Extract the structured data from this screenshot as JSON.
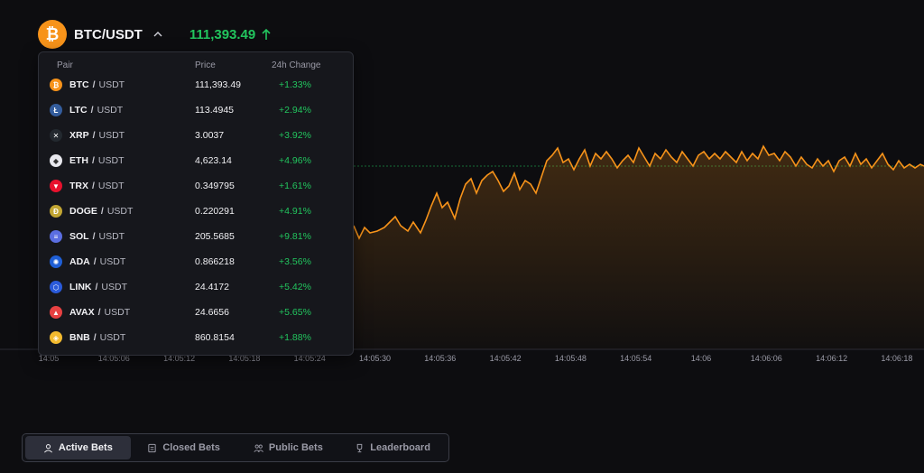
{
  "header": {
    "coin_glyph": "₿",
    "pair": "BTC/USDT",
    "price": "111,393.49",
    "price_color": "#22c55e",
    "accent": "#f7931a"
  },
  "dropdown": {
    "headers": {
      "pair": "Pair",
      "price": "Price",
      "change": "24h Change"
    },
    "rows": [
      {
        "base": "BTC",
        "quote": "USDT",
        "price": "111,393.49",
        "change": "+1.33%",
        "icon": "bitcoin-icon",
        "color": "#f7931a",
        "glyph": "₿"
      },
      {
        "base": "LTC",
        "quote": "USDT",
        "price": "113.4945",
        "change": "+2.94%",
        "icon": "litecoin-icon",
        "color": "#345d9d",
        "glyph": "Ł"
      },
      {
        "base": "XRP",
        "quote": "USDT",
        "price": "3.0037",
        "change": "+3.92%",
        "icon": "xrp-icon",
        "color": "#23292f",
        "glyph": "✕"
      },
      {
        "base": "ETH",
        "quote": "USDT",
        "price": "4,623.14",
        "change": "+4.96%",
        "icon": "ethereum-icon",
        "color": "#e8e8ee",
        "glyph": "◆"
      },
      {
        "base": "TRX",
        "quote": "USDT",
        "price": "0.349795",
        "change": "+1.61%",
        "icon": "tron-icon",
        "color": "#e8112d",
        "glyph": "▼"
      },
      {
        "base": "DOGE",
        "quote": "USDT",
        "price": "0.220291",
        "change": "+4.91%",
        "icon": "dogecoin-icon",
        "color": "#c2a633",
        "glyph": "Ð"
      },
      {
        "base": "SOL",
        "quote": "USDT",
        "price": "205.5685",
        "change": "+9.81%",
        "icon": "solana-icon",
        "color": "#5b6ee1",
        "glyph": "≡"
      },
      {
        "base": "ADA",
        "quote": "USDT",
        "price": "0.866218",
        "change": "+3.56%",
        "icon": "cardano-icon",
        "color": "#1f5fd6",
        "glyph": "✺"
      },
      {
        "base": "LINK",
        "quote": "USDT",
        "price": "24.4172",
        "change": "+5.42%",
        "icon": "chainlink-icon",
        "color": "#2a5ada",
        "glyph": "⬡"
      },
      {
        "base": "AVAX",
        "quote": "USDT",
        "price": "24.6656",
        "change": "+5.65%",
        "icon": "avalanche-icon",
        "color": "#e84142",
        "glyph": "▲"
      },
      {
        "base": "BNB",
        "quote": "USDT",
        "price": "860.8154",
        "change": "+1.88%",
        "icon": "bnb-icon",
        "color": "#f3ba2f",
        "glyph": "◈"
      }
    ]
  },
  "chart": {
    "x_ticks": [
      "14:05",
      "14:05:06",
      "14:05:12",
      "14:05:18",
      "14:05:24",
      "14:05:30",
      "14:05:36",
      "14:05:42",
      "14:05:48",
      "14:05:54",
      "14:06",
      "14:06:06",
      "14:06:12",
      "14:06:18"
    ],
    "line_color": "#f7931a",
    "reference_line_color": "#22c55e"
  },
  "tabs": [
    {
      "label": "Active Bets",
      "icon": "user-icon",
      "active": true
    },
    {
      "label": "Closed Bets",
      "icon": "receipt-icon",
      "active": false
    },
    {
      "label": "Public Bets",
      "icon": "users-icon",
      "active": false
    },
    {
      "label": "Leaderboard",
      "icon": "trophy-icon",
      "active": false
    }
  ]
}
